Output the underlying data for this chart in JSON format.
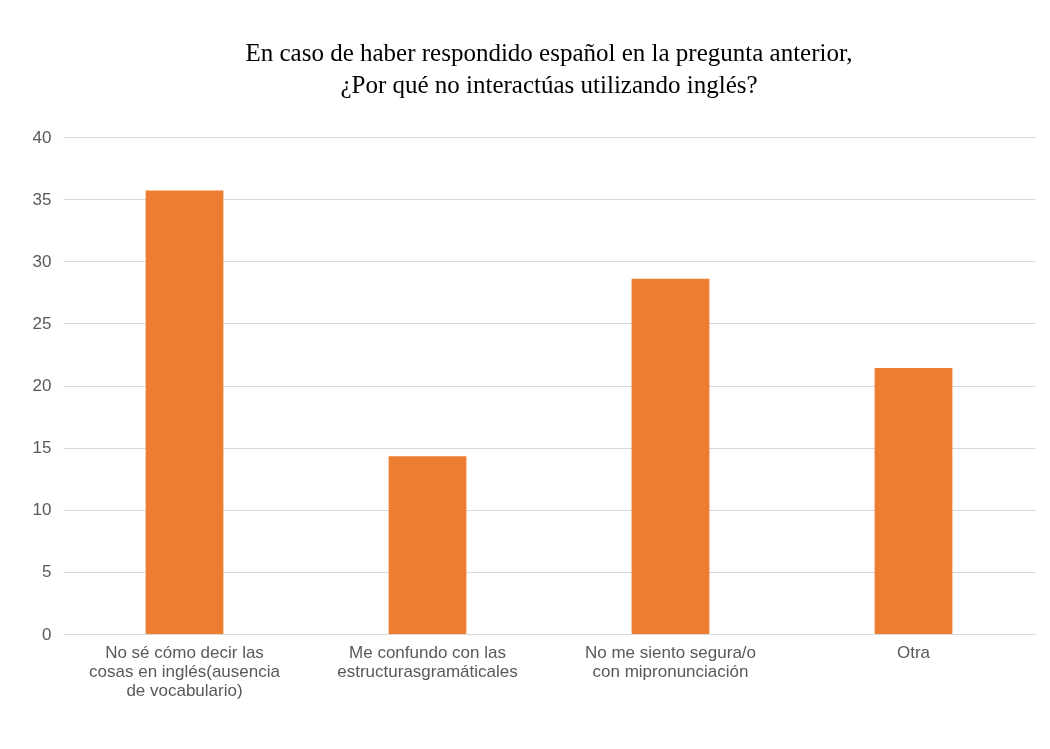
{
  "chart_data": {
    "type": "bar",
    "title": [
      "En caso de haber respondido español en la pregunta anterior,",
      "¿Por qué no interactúas utilizando inglés?"
    ],
    "categories": [
      "No sé cómo decir las cosas en inglés(ausencia de vocabulario)",
      "Me confundo con las estructurasgramáticales",
      "No me siento segura/o con mipronunciación",
      "Otra"
    ],
    "values": [
      35.7,
      14.3,
      28.6,
      21.4
    ],
    "color": "#ed7d31",
    "ylim": [
      0,
      40
    ],
    "yticks": [
      0,
      5,
      10,
      15,
      20,
      25,
      30,
      35,
      40
    ],
    "grid": "y"
  }
}
